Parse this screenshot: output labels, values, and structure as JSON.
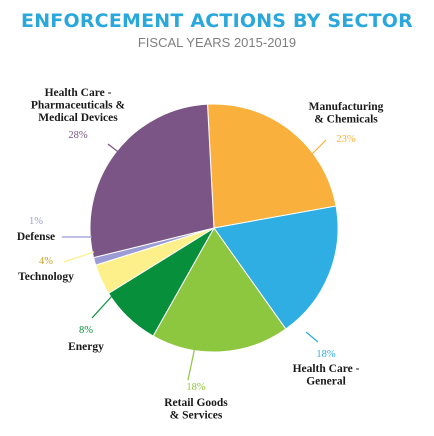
{
  "chart_data": {
    "type": "pie",
    "title": "ENFORCEMENT ACTIONS BY SECTOR",
    "subtitle": "FISCAL YEARS 2015-2019",
    "slices": [
      {
        "label_lines": [
          "Manufacturing",
          "& Chemicals"
        ],
        "value": 23,
        "value_label": "23%",
        "color": "#f9b03c"
      },
      {
        "label_lines": [
          "Health Care -",
          "General"
        ],
        "value": 18,
        "value_label": "18%",
        "color": "#2eaee2"
      },
      {
        "label_lines": [
          "Retail Goods",
          "& Services"
        ],
        "value": 18,
        "value_label": "18%",
        "color": "#8dc63f"
      },
      {
        "label_lines": [
          "Energy"
        ],
        "value": 8,
        "value_label": "8%",
        "color": "#078f3c"
      },
      {
        "label_lines": [
          "Technology"
        ],
        "value": 4,
        "value_label": "4%",
        "color": "#fdf08a"
      },
      {
        "label_lines": [
          "Defense"
        ],
        "value": 1,
        "value_label": "1%",
        "color": "#9b9bd6"
      },
      {
        "label_lines": [
          "Health Care -",
          "Pharmaceuticals &",
          "Medical Devices"
        ],
        "value": 28,
        "value_label": "28%",
        "color": "#7a5585"
      }
    ]
  }
}
